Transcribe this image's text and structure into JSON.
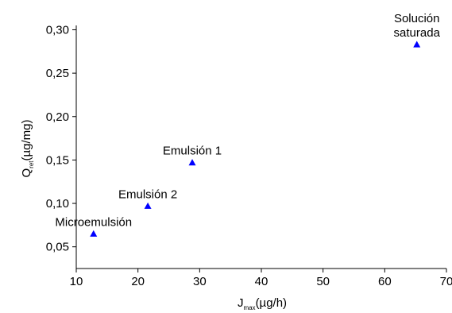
{
  "chart_data": {
    "type": "scatter",
    "xlabel": {
      "main": "J",
      "sub": "max",
      "unit": "(µg/h)"
    },
    "ylabel": {
      "main": "Q",
      "sub": "ret",
      "unit": "(µg/mg)"
    },
    "xlim": [
      10,
      70
    ],
    "ylim": [
      0.025,
      0.305
    ],
    "xticks": [
      10,
      20,
      30,
      40,
      50,
      60,
      70
    ],
    "xtick_labels": [
      "10",
      "20",
      "30",
      "40",
      "50",
      "60",
      "70"
    ],
    "yticks": [
      0.05,
      0.1,
      0.15,
      0.2,
      0.25,
      0.3
    ],
    "ytick_labels": [
      "0,05",
      "0,10",
      "0,15",
      "0,20",
      "0,25",
      "0,30"
    ],
    "grid": false,
    "marker": "triangle",
    "marker_color": "#0000ff",
    "points": [
      {
        "label": "Microemulsión",
        "x": 12.8,
        "y": 0.065
      },
      {
        "label": "Emulsión 2",
        "x": 21.6,
        "y": 0.097
      },
      {
        "label": "Emulsión 1",
        "x": 28.8,
        "y": 0.147
      },
      {
        "label": [
          "Solución",
          "saturada"
        ],
        "x": 65.2,
        "y": 0.283
      }
    ]
  }
}
